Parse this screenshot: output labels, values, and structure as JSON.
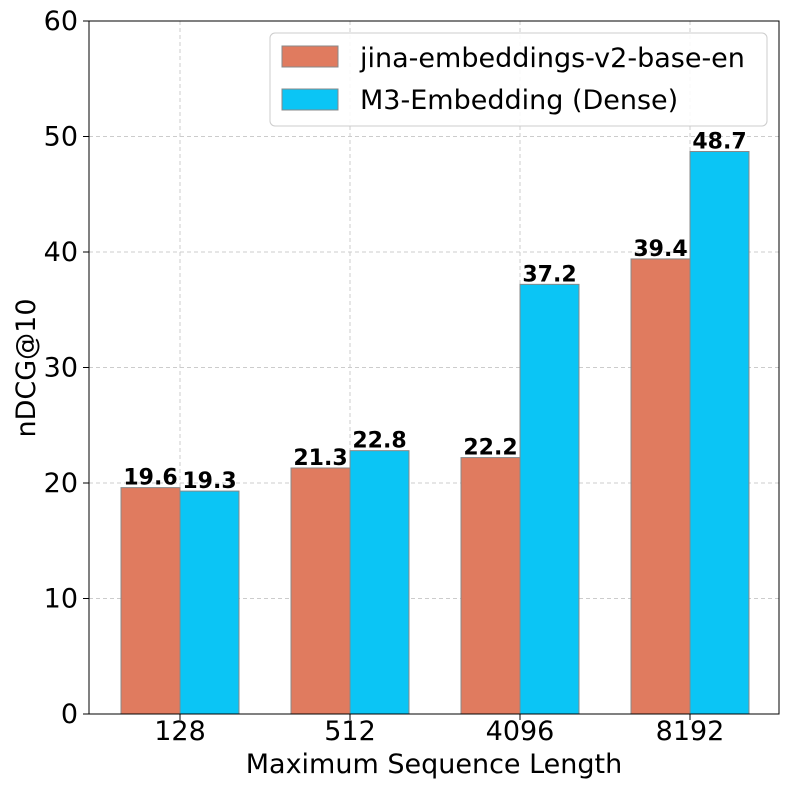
{
  "chart_data": {
    "type": "bar",
    "title": "",
    "xlabel": "Maximum Sequence Length",
    "ylabel": "nDCG@10",
    "categories": [
      "128",
      "512",
      "4096",
      "8192"
    ],
    "ylim": [
      0,
      60
    ],
    "yticks": [
      0,
      10,
      20,
      30,
      40,
      50,
      60
    ],
    "grid": true,
    "legend_position": "top-right",
    "series": [
      {
        "name": "jina-embeddings-v2-base-en",
        "color": "#e07b5f",
        "values": [
          19.6,
          21.3,
          22.2,
          39.4
        ],
        "labels": [
          "19.6",
          "21.3",
          "22.2",
          "39.4"
        ]
      },
      {
        "name": "M3-Embedding (Dense)",
        "color": "#0bc5f5",
        "values": [
          19.3,
          22.8,
          37.2,
          48.7
        ],
        "labels": [
          "19.3",
          "22.8",
          "37.2",
          "48.7"
        ]
      }
    ]
  }
}
